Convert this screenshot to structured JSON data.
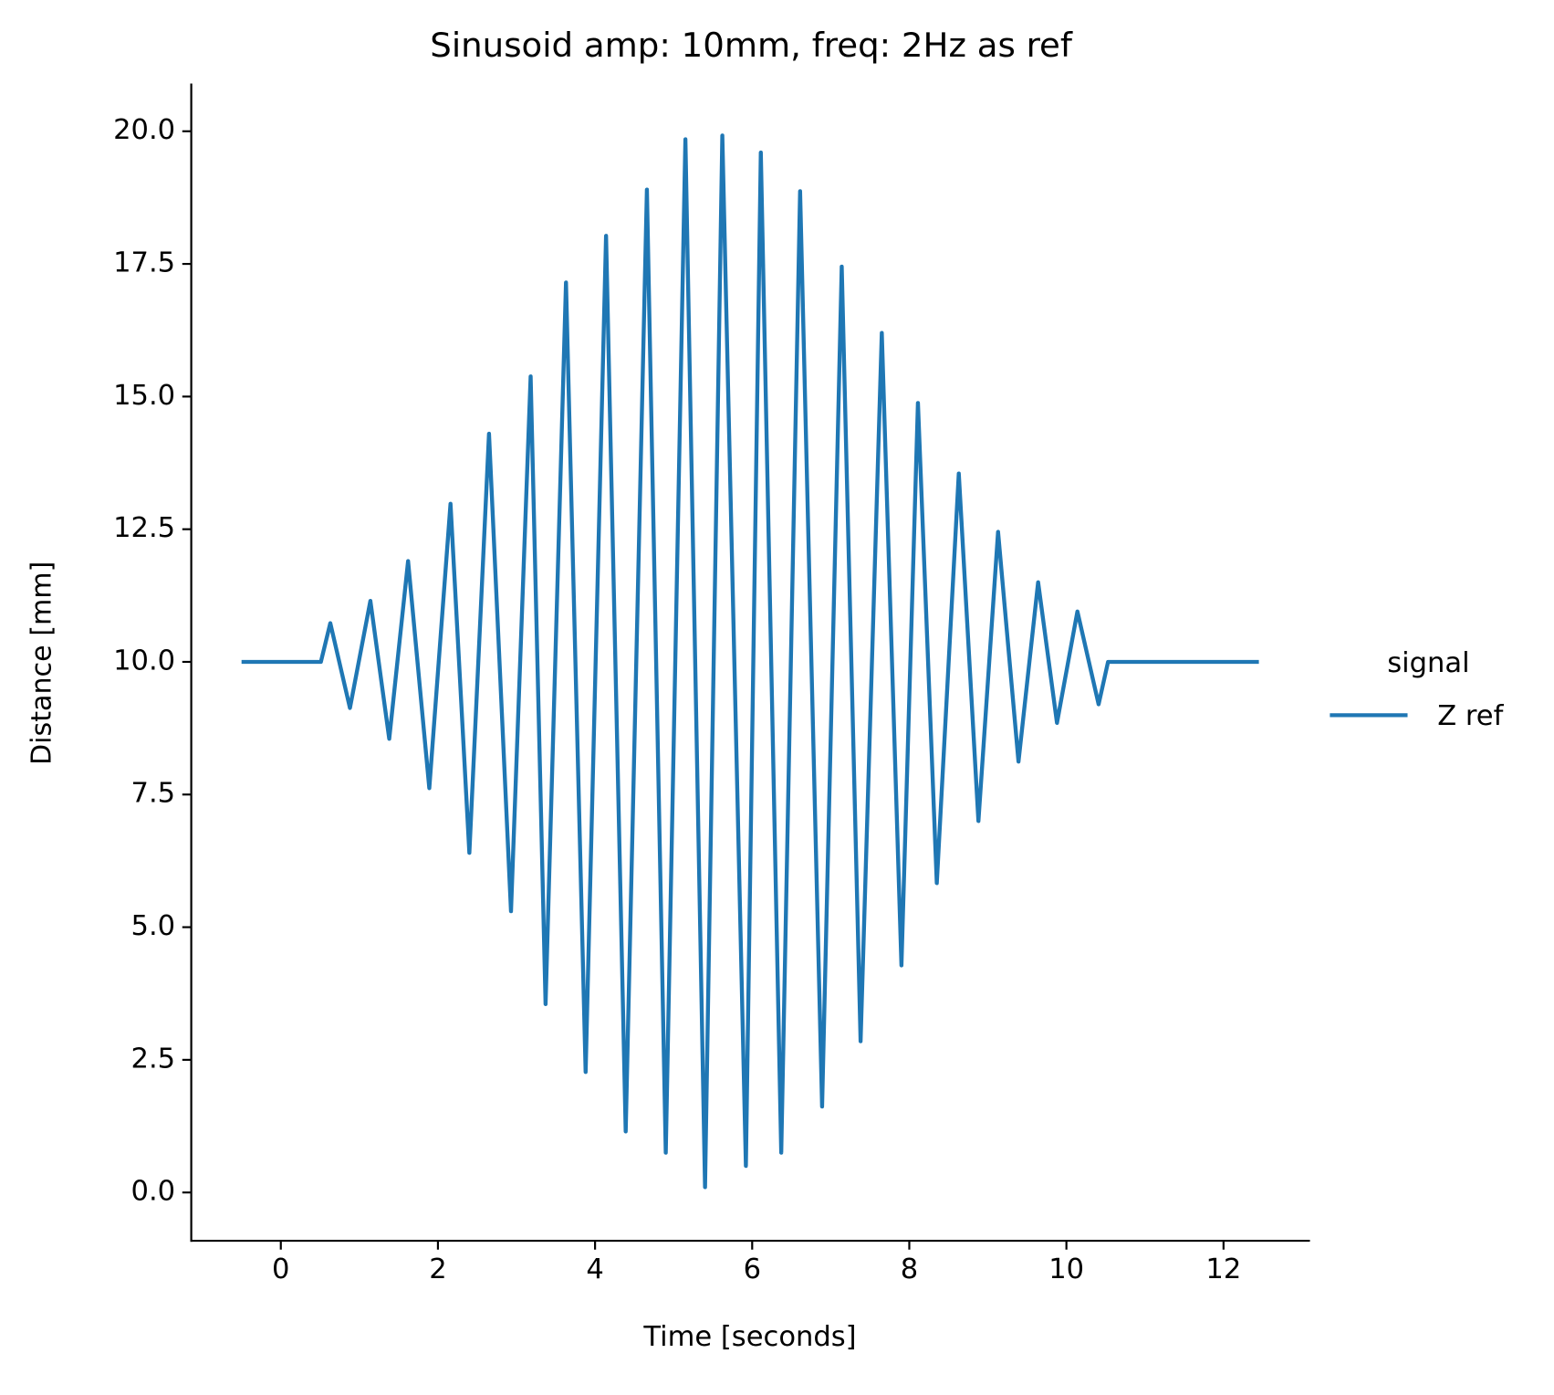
{
  "chart_data": {
    "type": "line",
    "title": "Sinusoid amp: 10mm, freq: 2Hz as ref",
    "x_label": "Time [seconds]",
    "y_label": "Distance [mm]",
    "legend_title": "signal",
    "x": [
      -0.5,
      0.51,
      0.63,
      0.88,
      1.14,
      1.38,
      1.62,
      1.89,
      2.16,
      2.4,
      2.65,
      2.93,
      3.18,
      3.37,
      3.63,
      3.88,
      4.14,
      4.39,
      4.66,
      4.9,
      5.15,
      5.4,
      5.62,
      5.92,
      6.11,
      6.37,
      6.61,
      6.89,
      7.14,
      7.38,
      7.65,
      7.9,
      8.11,
      8.35,
      8.63,
      8.88,
      9.13,
      9.39,
      9.64,
      9.88,
      10.14,
      10.41,
      10.53,
      12.45
    ],
    "series": [
      {
        "name": "Z ref",
        "color": "#1f77b4",
        "values": [
          10,
          10,
          10.73,
          9.13,
          11.15,
          8.55,
          11.9,
          7.62,
          12.98,
          6.4,
          14.3,
          5.3,
          15.38,
          3.55,
          17.15,
          2.27,
          18.03,
          1.15,
          18.9,
          0.75,
          19.85,
          0.1,
          19.92,
          0.5,
          19.6,
          0.75,
          18.87,
          1.62,
          17.45,
          2.85,
          16.2,
          4.28,
          14.88,
          5.83,
          13.55,
          7.0,
          12.45,
          8.12,
          11.5,
          8.85,
          10.95,
          9.2,
          10,
          10
        ]
      }
    ],
    "xlim": [
      -1.14,
      13.1
    ],
    "ylim": [
      -0.91,
      20.9
    ],
    "xticks": [
      0,
      2,
      4,
      6,
      8,
      10,
      12
    ],
    "yticks": [
      {
        "value": 0,
        "label": "0.0"
      },
      {
        "value": 2.5,
        "label": "2.5"
      },
      {
        "value": 5,
        "label": "5.0"
      },
      {
        "value": 7.5,
        "label": "7.5"
      },
      {
        "value": 10,
        "label": "10.0"
      },
      {
        "value": 12.5,
        "label": "12.5"
      },
      {
        "value": 15,
        "label": "15.0"
      },
      {
        "value": 17.5,
        "label": "17.5"
      },
      {
        "value": 20,
        "label": "20.0"
      }
    ],
    "grid": false,
    "legend": "right"
  }
}
